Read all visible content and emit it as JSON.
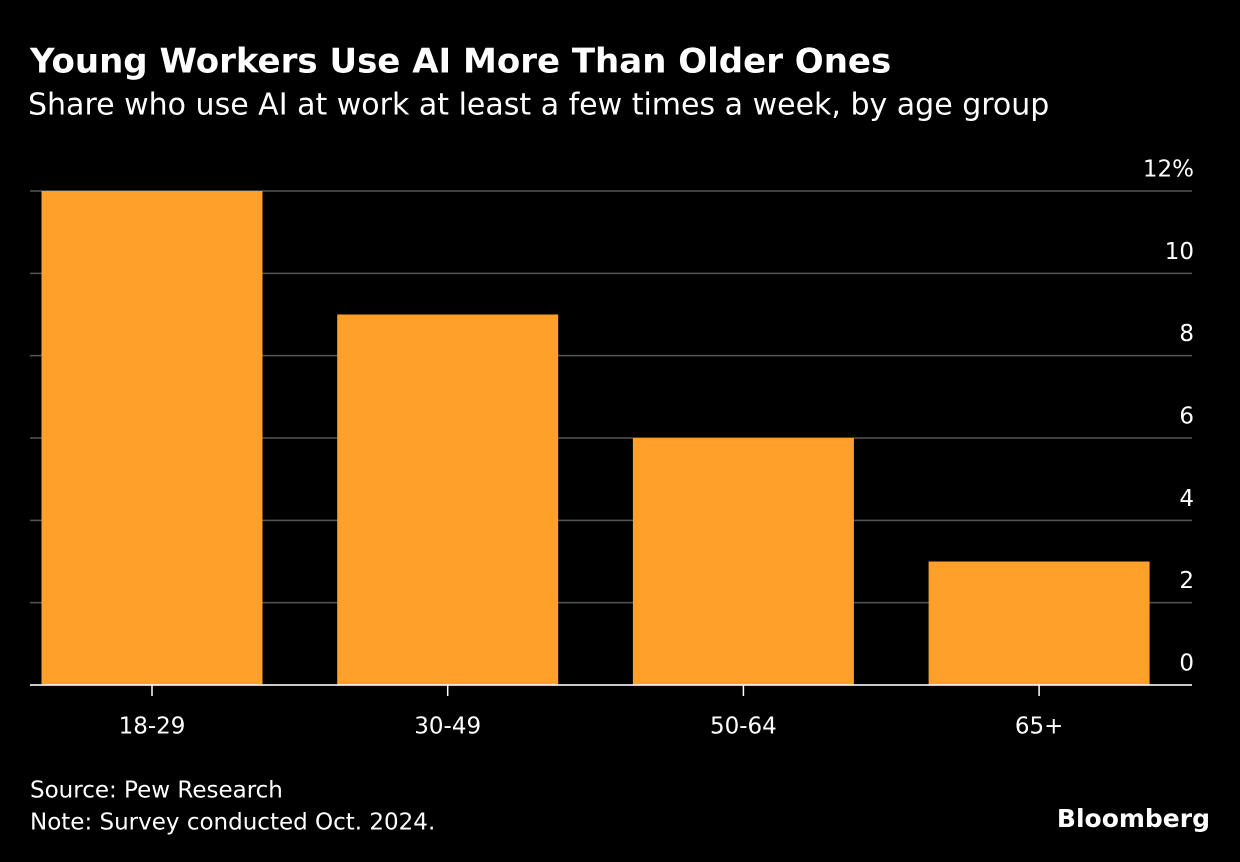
{
  "chart_data": {
    "type": "bar",
    "title": "Young Workers Use AI More Than Older Ones",
    "subtitle": "Share who use AI at work at least a few times a week, by age group",
    "categories": [
      "18-29",
      "30-49",
      "50-64",
      "65+"
    ],
    "values": [
      12,
      9,
      6,
      3
    ],
    "color": "#ffa02a",
    "ylim": [
      0,
      12
    ],
    "yticks": [
      0,
      2,
      4,
      6,
      8,
      10,
      {
        "value": 12,
        "label": "12%"
      }
    ],
    "grid": true,
    "source": "Source: Pew Research",
    "note": "Note: Survey conducted Oct. 2024.",
    "credit": "Bloomberg"
  }
}
